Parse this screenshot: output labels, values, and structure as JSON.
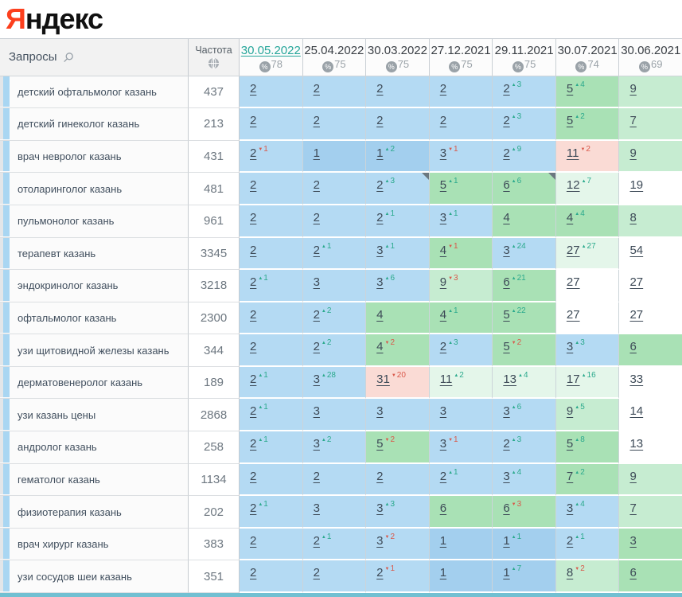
{
  "logo": {
    "first_letter": "Я",
    "rest": "ндекс"
  },
  "header": {
    "queries_label": "Запросы",
    "frequency_label": "Частота",
    "columns": [
      {
        "date": "30.05.2022",
        "pct": "78",
        "active": true
      },
      {
        "date": "25.04.2022",
        "pct": "75",
        "active": false
      },
      {
        "date": "30.03.2022",
        "pct": "75",
        "active": false
      },
      {
        "date": "27.12.2021",
        "pct": "75",
        "active": false
      },
      {
        "date": "29.11.2021",
        "pct": "75",
        "active": false
      },
      {
        "date": "30.07.2021",
        "pct": "74",
        "active": false
      },
      {
        "date": "30.06.2021",
        "pct": "69",
        "active": false
      }
    ]
  },
  "icons": {
    "search_icon": "search-icon",
    "globe_icon": "globe-icon",
    "percent_icon": "%",
    "up_glyph": "▲",
    "down_glyph": "▼"
  },
  "colors": {
    "accent_teal": "#26a69a",
    "logo_red": "#fc3f1d",
    "pos_1_bg": "#a3cfee",
    "pos_2_3_bg": "#b4daf3",
    "pos_4_6_bg": "#a9e1b5",
    "pos_7_10_bg": "#c6ecd1",
    "improved_11_30_bg": "#e4f6ea",
    "dropped_bg": "#fadbd5",
    "change_up": "#2aa98c",
    "change_down": "#d9584a"
  },
  "rows": [
    {
      "query": "детский офтальмолог казань",
      "freq": "437",
      "cells": [
        {
          "v": "2",
          "bg": "b"
        },
        {
          "v": "2",
          "bg": "b"
        },
        {
          "v": "2",
          "bg": "b"
        },
        {
          "v": "2",
          "bg": "b"
        },
        {
          "v": "2",
          "c": "3",
          "d": "up",
          "bg": "b"
        },
        {
          "v": "5",
          "c": "4",
          "d": "up",
          "bg": "g"
        },
        {
          "v": "9",
          "bg": "gl"
        }
      ]
    },
    {
      "query": "детский гинеколог казань",
      "freq": "213",
      "cells": [
        {
          "v": "2",
          "bg": "b"
        },
        {
          "v": "2",
          "bg": "b"
        },
        {
          "v": "2",
          "bg": "b"
        },
        {
          "v": "2",
          "bg": "b"
        },
        {
          "v": "2",
          "c": "3",
          "d": "up",
          "bg": "b"
        },
        {
          "v": "5",
          "c": "2",
          "d": "up",
          "bg": "g"
        },
        {
          "v": "7",
          "bg": "gl"
        }
      ]
    },
    {
      "query": "врач невролог казань",
      "freq": "431",
      "cells": [
        {
          "v": "2",
          "c": "1",
          "d": "dn",
          "bg": "b"
        },
        {
          "v": "1",
          "bg": "b1"
        },
        {
          "v": "1",
          "c": "2",
          "d": "up",
          "bg": "b1"
        },
        {
          "v": "3",
          "c": "1",
          "d": "dn",
          "bg": "b"
        },
        {
          "v": "2",
          "c": "9",
          "d": "up",
          "bg": "b"
        },
        {
          "v": "11",
          "c": "2",
          "d": "dn",
          "bg": "p"
        },
        {
          "v": "9",
          "bg": "gl"
        }
      ]
    },
    {
      "query": "отоларинголог казань",
      "freq": "481",
      "cells": [
        {
          "v": "2",
          "bg": "b"
        },
        {
          "v": "2",
          "bg": "b"
        },
        {
          "v": "2",
          "c": "3",
          "d": "up",
          "bg": "b",
          "k": true
        },
        {
          "v": "5",
          "c": "1",
          "d": "up",
          "bg": "g"
        },
        {
          "v": "6",
          "c": "6",
          "d": "up",
          "bg": "g",
          "k": true
        },
        {
          "v": "12",
          "c": "7",
          "d": "up",
          "bg": "gp"
        },
        {
          "v": "19",
          "bg": "w"
        }
      ]
    },
    {
      "query": "пульмонолог казань",
      "freq": "961",
      "cells": [
        {
          "v": "2",
          "bg": "b"
        },
        {
          "v": "2",
          "bg": "b"
        },
        {
          "v": "2",
          "c": "1",
          "d": "up",
          "bg": "b"
        },
        {
          "v": "3",
          "c": "1",
          "d": "up",
          "bg": "b"
        },
        {
          "v": "4",
          "bg": "g"
        },
        {
          "v": "4",
          "c": "4",
          "d": "up",
          "bg": "g"
        },
        {
          "v": "8",
          "bg": "gl"
        }
      ]
    },
    {
      "query": "терапевт казань",
      "freq": "3345",
      "cells": [
        {
          "v": "2",
          "bg": "b"
        },
        {
          "v": "2",
          "c": "1",
          "d": "up",
          "bg": "b"
        },
        {
          "v": "3",
          "c": "1",
          "d": "up",
          "bg": "b"
        },
        {
          "v": "4",
          "c": "1",
          "d": "dn",
          "bg": "g"
        },
        {
          "v": "3",
          "c": "24",
          "d": "up",
          "bg": "b"
        },
        {
          "v": "27",
          "c": "27",
          "d": "up",
          "bg": "gp"
        },
        {
          "v": "54",
          "bg": "w"
        }
      ]
    },
    {
      "query": "эндокринолог казань",
      "freq": "3218",
      "cells": [
        {
          "v": "2",
          "c": "1",
          "d": "up",
          "bg": "b"
        },
        {
          "v": "3",
          "bg": "b"
        },
        {
          "v": "3",
          "c": "6",
          "d": "up",
          "bg": "b"
        },
        {
          "v": "9",
          "c": "3",
          "d": "dn",
          "bg": "gl"
        },
        {
          "v": "6",
          "c": "21",
          "d": "up",
          "bg": "g"
        },
        {
          "v": "27",
          "bg": "w"
        },
        {
          "v": "27",
          "bg": "w"
        }
      ]
    },
    {
      "query": "офтальмолог казань",
      "freq": "2300",
      "cells": [
        {
          "v": "2",
          "bg": "b"
        },
        {
          "v": "2",
          "c": "2",
          "d": "up",
          "bg": "b"
        },
        {
          "v": "4",
          "bg": "g"
        },
        {
          "v": "4",
          "c": "1",
          "d": "up",
          "bg": "g"
        },
        {
          "v": "5",
          "c": "22",
          "d": "up",
          "bg": "g"
        },
        {
          "v": "27",
          "bg": "w"
        },
        {
          "v": "27",
          "bg": "w"
        }
      ]
    },
    {
      "query": "узи щитовидной железы казань",
      "freq": "344",
      "cells": [
        {
          "v": "2",
          "bg": "b"
        },
        {
          "v": "2",
          "c": "2",
          "d": "up",
          "bg": "b"
        },
        {
          "v": "4",
          "c": "2",
          "d": "dn",
          "bg": "g"
        },
        {
          "v": "2",
          "c": "3",
          "d": "up",
          "bg": "b"
        },
        {
          "v": "5",
          "c": "2",
          "d": "dn",
          "bg": "g"
        },
        {
          "v": "3",
          "c": "3",
          "d": "up",
          "bg": "b"
        },
        {
          "v": "6",
          "bg": "g"
        }
      ]
    },
    {
      "query": "дерматовенеролог казань",
      "freq": "189",
      "cells": [
        {
          "v": "2",
          "c": "1",
          "d": "up",
          "bg": "b"
        },
        {
          "v": "3",
          "c": "28",
          "d": "up",
          "bg": "b"
        },
        {
          "v": "31",
          "c": "20",
          "d": "dn",
          "bg": "p"
        },
        {
          "v": "11",
          "c": "2",
          "d": "up",
          "bg": "gp"
        },
        {
          "v": "13",
          "c": "4",
          "d": "up",
          "bg": "gp"
        },
        {
          "v": "17",
          "c": "16",
          "d": "up",
          "bg": "gp"
        },
        {
          "v": "33",
          "bg": "w"
        }
      ]
    },
    {
      "query": "узи казань цены",
      "freq": "2868",
      "cells": [
        {
          "v": "2",
          "c": "1",
          "d": "up",
          "bg": "b"
        },
        {
          "v": "3",
          "bg": "b"
        },
        {
          "v": "3",
          "bg": "b"
        },
        {
          "v": "3",
          "bg": "b"
        },
        {
          "v": "3",
          "c": "6",
          "d": "up",
          "bg": "b"
        },
        {
          "v": "9",
          "c": "5",
          "d": "up",
          "bg": "gl"
        },
        {
          "v": "14",
          "bg": "w"
        }
      ]
    },
    {
      "query": "андролог казань",
      "freq": "258",
      "cells": [
        {
          "v": "2",
          "c": "1",
          "d": "up",
          "bg": "b"
        },
        {
          "v": "3",
          "c": "2",
          "d": "up",
          "bg": "b"
        },
        {
          "v": "5",
          "c": "2",
          "d": "dn",
          "bg": "g"
        },
        {
          "v": "3",
          "c": "1",
          "d": "dn",
          "bg": "b"
        },
        {
          "v": "2",
          "c": "3",
          "d": "up",
          "bg": "b"
        },
        {
          "v": "5",
          "c": "8",
          "d": "up",
          "bg": "g"
        },
        {
          "v": "13",
          "bg": "w"
        }
      ]
    },
    {
      "query": "гематолог казань",
      "freq": "1134",
      "cells": [
        {
          "v": "2",
          "bg": "b"
        },
        {
          "v": "2",
          "bg": "b"
        },
        {
          "v": "2",
          "bg": "b"
        },
        {
          "v": "2",
          "c": "1",
          "d": "up",
          "bg": "b"
        },
        {
          "v": "3",
          "c": "4",
          "d": "up",
          "bg": "b"
        },
        {
          "v": "7",
          "c": "2",
          "d": "up",
          "bg": "g"
        },
        {
          "v": "9",
          "bg": "gl"
        }
      ]
    },
    {
      "query": "физиотерапия казань",
      "freq": "202",
      "cells": [
        {
          "v": "2",
          "c": "1",
          "d": "up",
          "bg": "b"
        },
        {
          "v": "3",
          "bg": "b"
        },
        {
          "v": "3",
          "c": "3",
          "d": "up",
          "bg": "b"
        },
        {
          "v": "6",
          "bg": "g"
        },
        {
          "v": "6",
          "c": "3",
          "d": "dn",
          "bg": "g"
        },
        {
          "v": "3",
          "c": "4",
          "d": "up",
          "bg": "b"
        },
        {
          "v": "7",
          "bg": "gl"
        }
      ]
    },
    {
      "query": "врач хирург казань",
      "freq": "383",
      "cells": [
        {
          "v": "2",
          "bg": "b"
        },
        {
          "v": "2",
          "c": "1",
          "d": "up",
          "bg": "b"
        },
        {
          "v": "3",
          "c": "2",
          "d": "dn",
          "bg": "b"
        },
        {
          "v": "1",
          "bg": "b1"
        },
        {
          "v": "1",
          "c": "1",
          "d": "up",
          "bg": "b1"
        },
        {
          "v": "2",
          "c": "1",
          "d": "up",
          "bg": "b"
        },
        {
          "v": "3",
          "bg": "g"
        }
      ]
    },
    {
      "query": "узи сосудов шеи казань",
      "freq": "351",
      "cells": [
        {
          "v": "2",
          "bg": "b"
        },
        {
          "v": "2",
          "bg": "b"
        },
        {
          "v": "2",
          "c": "1",
          "d": "dn",
          "bg": "b"
        },
        {
          "v": "1",
          "bg": "b1"
        },
        {
          "v": "1",
          "c": "7",
          "d": "up",
          "bg": "b1"
        },
        {
          "v": "8",
          "c": "2",
          "d": "dn",
          "bg": "gl"
        },
        {
          "v": "6",
          "bg": "g"
        }
      ]
    }
  ]
}
